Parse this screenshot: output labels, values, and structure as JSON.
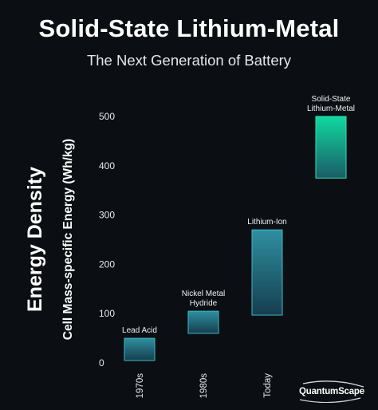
{
  "header": {
    "title": "Solid-State Lithium-Metal",
    "subtitle": "The Next Generation of Battery"
  },
  "brand": {
    "name": "QuantumScape"
  },
  "chart_data": {
    "type": "bar",
    "style": "floating-range",
    "ylabel_main": "Energy Density",
    "ylabel_sub": "Cell Mass-specific Energy (Wh/kg)",
    "ylim": [
      0,
      500
    ],
    "yticks": [
      "0",
      "100",
      "200",
      "300",
      "400",
      "500"
    ],
    "categories": [
      "1970s",
      "1980s",
      "Today",
      ""
    ],
    "series": [
      {
        "label": "Lead Acid",
        "low": 5,
        "high": 50
      },
      {
        "label": "Nickel Metal Hydride",
        "label_lines": [
          "Nickel Metal",
          "Hydride"
        ],
        "low": 60,
        "high": 105
      },
      {
        "label": "Lithium-Ion",
        "low": 97,
        "high": 270
      },
      {
        "label": "Solid-State Lithium-Metal",
        "label_lines": [
          "Solid-State",
          "Lithium-Metal"
        ],
        "low": 375,
        "high": 500
      }
    ],
    "grid": false,
    "colors": {
      "bar_top": "#2f8fa0",
      "bar_bottom": "#153e4e",
      "bar_stroke": "#3fb7c6",
      "ss_top": "#10d8a0",
      "ss_bottom": "#1b5c66",
      "ss_stroke": "#2fe3b4"
    }
  }
}
